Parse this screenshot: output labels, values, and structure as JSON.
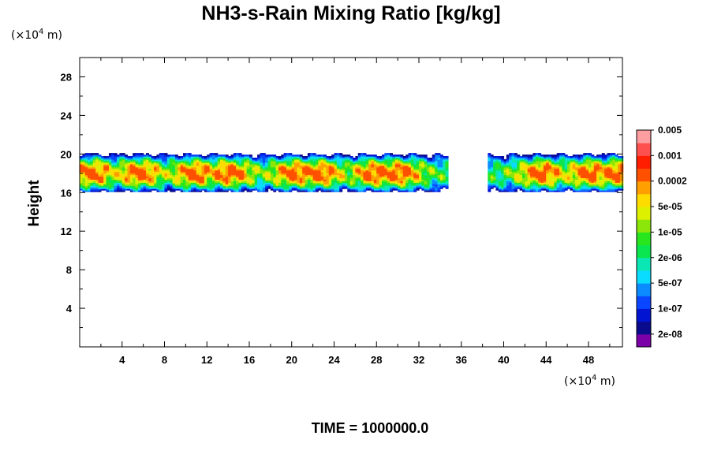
{
  "chart_data": {
    "type": "heatmap",
    "title": "NH3-s-Rain Mixing Ratio [kg/kg]",
    "ylabel": "Height",
    "x_unit": {
      "prefix": "(×10",
      "exp": "4",
      "suffix": " m)"
    },
    "y_unit": {
      "prefix": "(×10",
      "exp": "4",
      "suffix": " m)"
    },
    "xlim": [
      0,
      51.2
    ],
    "ylim": [
      0,
      30
    ],
    "xticks": [
      4,
      8,
      12,
      16,
      20,
      24,
      28,
      32,
      36,
      40,
      44,
      48
    ],
    "yticks": [
      4,
      8,
      12,
      16,
      20,
      24,
      28
    ],
    "colorbar": {
      "colors": [
        "#7b00a8",
        "#0a0a8c",
        "#0014d2",
        "#0a46ff",
        "#0a8cff",
        "#0adcff",
        "#0ae6b4",
        "#0ae650",
        "#28e61e",
        "#8ce60a",
        "#dcf000",
        "#ffdc00",
        "#ffa000",
        "#ff5000",
        "#ff1e00",
        "#ff5050",
        "#ff9ea0"
      ],
      "labels": [
        "2e-08",
        "1e-07",
        "5e-07",
        "2e-06",
        "1e-05",
        "5e-05",
        "0.0002",
        "0.001",
        "0.005"
      ]
    },
    "layer": {
      "y_bottom_approx": 16.5,
      "y_top_approx": 19.8,
      "peak_value_approx": 0.001,
      "gap_x": [
        34.5,
        38.5
      ],
      "cores_x": [
        1.0,
        5.5,
        10.8,
        14.0,
        20.2,
        22.5,
        27.8,
        30.0,
        43.5,
        48.0,
        50.5
      ]
    },
    "time_label": "TIME = 1000000.0"
  }
}
